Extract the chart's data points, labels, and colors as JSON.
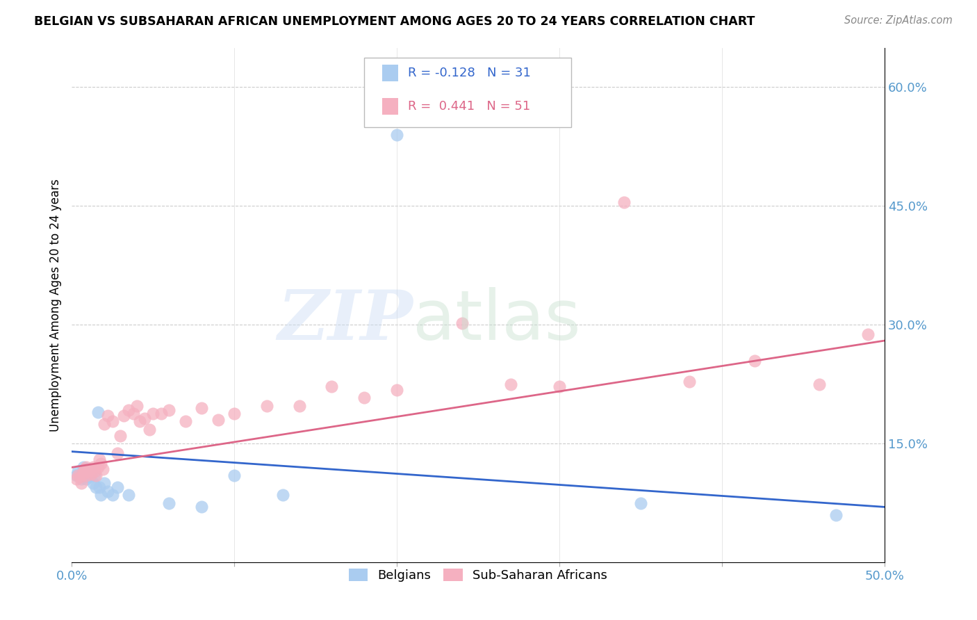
{
  "title": "BELGIAN VS SUBSAHARAN AFRICAN UNEMPLOYMENT AMONG AGES 20 TO 24 YEARS CORRELATION CHART",
  "source": "Source: ZipAtlas.com",
  "ylabel": "Unemployment Among Ages 20 to 24 years",
  "xlim": [
    0.0,
    0.5
  ],
  "ylim": [
    0.0,
    0.65
  ],
  "xticks": [
    0.0,
    0.1,
    0.2,
    0.3,
    0.4,
    0.5
  ],
  "xticklabels": [
    "0.0%",
    "",
    "",
    "",
    "",
    "50.0%"
  ],
  "yticks_right": [
    0.15,
    0.3,
    0.45,
    0.6
  ],
  "yticklabels_right": [
    "15.0%",
    "30.0%",
    "45.0%",
    "60.0%"
  ],
  "legend_r_belgian": "-0.128",
  "legend_n_belgian": "31",
  "legend_r_subsaharan": "0.441",
  "legend_n_subsaharan": "51",
  "belgian_color": "#aaccf0",
  "subsaharan_color": "#f5b0c0",
  "belgian_line_color": "#3366cc",
  "subsaharan_line_color": "#dd6688",
  "belgian_x": [
    0.003,
    0.004,
    0.005,
    0.006,
    0.007,
    0.007,
    0.008,
    0.008,
    0.009,
    0.009,
    0.01,
    0.011,
    0.012,
    0.013,
    0.014,
    0.015,
    0.016,
    0.017,
    0.018,
    0.02,
    0.022,
    0.025,
    0.028,
    0.035,
    0.06,
    0.08,
    0.1,
    0.13,
    0.2,
    0.35,
    0.47
  ],
  "belgian_y": [
    0.11,
    0.115,
    0.108,
    0.105,
    0.112,
    0.12,
    0.11,
    0.118,
    0.105,
    0.115,
    0.113,
    0.108,
    0.115,
    0.1,
    0.11,
    0.095,
    0.19,
    0.095,
    0.085,
    0.1,
    0.09,
    0.085,
    0.095,
    0.085,
    0.075,
    0.07,
    0.11,
    0.085,
    0.54,
    0.075,
    0.06
  ],
  "subsaharan_x": [
    0.003,
    0.004,
    0.005,
    0.006,
    0.007,
    0.007,
    0.008,
    0.009,
    0.009,
    0.01,
    0.011,
    0.012,
    0.013,
    0.014,
    0.015,
    0.016,
    0.017,
    0.018,
    0.019,
    0.02,
    0.022,
    0.025,
    0.028,
    0.03,
    0.032,
    0.035,
    0.038,
    0.04,
    0.042,
    0.045,
    0.048,
    0.05,
    0.055,
    0.06,
    0.07,
    0.08,
    0.09,
    0.1,
    0.12,
    0.14,
    0.16,
    0.18,
    0.2,
    0.24,
    0.27,
    0.3,
    0.34,
    0.38,
    0.42,
    0.46,
    0.49
  ],
  "subsaharan_y": [
    0.105,
    0.11,
    0.108,
    0.1,
    0.115,
    0.112,
    0.118,
    0.11,
    0.12,
    0.115,
    0.118,
    0.112,
    0.12,
    0.115,
    0.11,
    0.12,
    0.13,
    0.125,
    0.118,
    0.175,
    0.185,
    0.178,
    0.138,
    0.16,
    0.185,
    0.192,
    0.188,
    0.198,
    0.178,
    0.182,
    0.168,
    0.188,
    0.188,
    0.192,
    0.178,
    0.195,
    0.18,
    0.188,
    0.198,
    0.198,
    0.222,
    0.208,
    0.218,
    0.302,
    0.225,
    0.222,
    0.455,
    0.228,
    0.255,
    0.225,
    0.288
  ]
}
